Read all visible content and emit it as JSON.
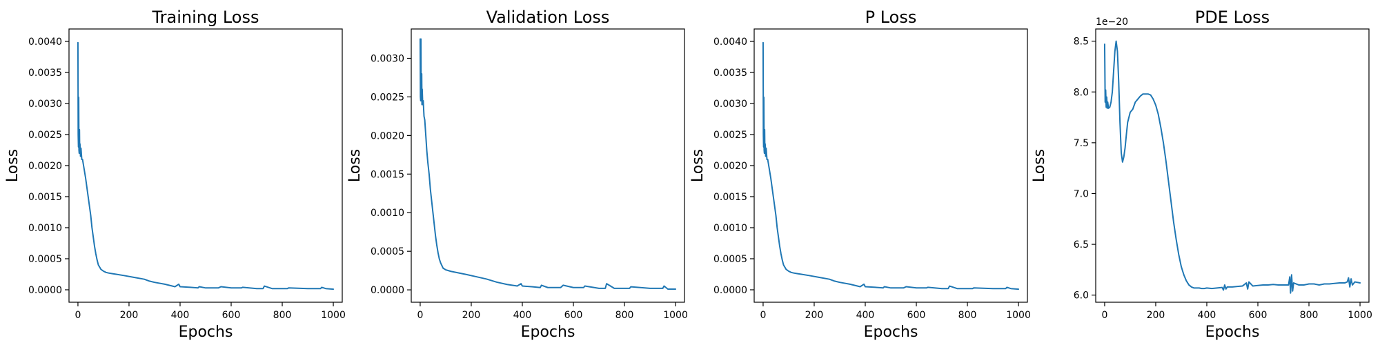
{
  "chart_data": [
    {
      "type": "line",
      "title": "Training Loss",
      "xlabel": "Epochs",
      "ylabel": "Loss",
      "xlim": [
        -35,
        1035
      ],
      "ylim": [
        -0.0002,
        0.0042
      ],
      "xticks": [
        0,
        200,
        400,
        600,
        800,
        1000
      ],
      "xticklabels": [
        "0",
        "200",
        "400",
        "600",
        "800",
        "1000"
      ],
      "yticks": [
        0.0,
        0.0005,
        0.001,
        0.0015,
        0.002,
        0.0025,
        0.003,
        0.0035,
        0.004
      ],
      "yticklabels": [
        "0.0000",
        "0.0005",
        "0.0010",
        "0.0015",
        "0.0020",
        "0.0025",
        "0.0030",
        "0.0035",
        "0.0040"
      ],
      "offset_text": "",
      "color": "#1f77b4",
      "x": [
        0,
        1,
        2,
        3,
        4,
        5,
        6,
        7,
        8,
        10,
        12,
        15,
        18,
        22,
        26,
        30,
        35,
        40,
        45,
        50,
        55,
        60,
        65,
        70,
        75,
        80,
        90,
        100,
        110,
        120,
        135,
        150,
        180,
        220,
        260,
        280,
        300,
        340,
        380,
        395,
        400,
        440,
        470,
        475,
        500,
        550,
        560,
        600,
        640,
        645,
        700,
        725,
        730,
        760,
        820,
        825,
        900,
        950,
        955,
        970,
        1000
      ],
      "y": [
        0.00398,
        0.0025,
        0.0023,
        0.0031,
        0.00225,
        0.0022,
        0.00258,
        0.0022,
        0.00235,
        0.00215,
        0.00228,
        0.0021,
        0.0021,
        0.002,
        0.0019,
        0.0018,
        0.00165,
        0.0015,
        0.00135,
        0.0012,
        0.001,
        0.00085,
        0.0007,
        0.00058,
        0.00048,
        0.0004,
        0.00033,
        0.0003,
        0.00028,
        0.00027,
        0.00026,
        0.00025,
        0.00023,
        0.0002,
        0.00017,
        0.00014,
        0.00012,
        9e-05,
        5e-05,
        9e-05,
        5e-05,
        4e-05,
        3e-05,
        5e-05,
        3e-05,
        3e-05,
        5e-05,
        3e-05,
        3e-05,
        4e-05,
        2e-05,
        2e-05,
        6e-05,
        2e-05,
        2e-05,
        3e-05,
        2e-05,
        2e-05,
        4e-05,
        2e-05,
        1e-05
      ]
    },
    {
      "type": "line",
      "title": "Validation Loss",
      "xlabel": "Epochs",
      "ylabel": "Loss",
      "xlim": [
        -35,
        1035
      ],
      "ylim": [
        -0.00016,
        0.00338
      ],
      "xticks": [
        0,
        200,
        400,
        600,
        800,
        1000
      ],
      "xticklabels": [
        "0",
        "200",
        "400",
        "600",
        "800",
        "1000"
      ],
      "yticks": [
        0.0,
        0.0005,
        0.001,
        0.0015,
        0.002,
        0.0025,
        0.003
      ],
      "yticklabels": [
        "0.0000",
        "0.0005",
        "0.0010",
        "0.0015",
        "0.0020",
        "0.0025",
        "0.0030"
      ],
      "offset_text": "",
      "color": "#1f77b4",
      "x": [
        0,
        1,
        2,
        3,
        4,
        5,
        6,
        7,
        8,
        10,
        12,
        15,
        18,
        22,
        26,
        30,
        35,
        40,
        45,
        50,
        55,
        60,
        65,
        70,
        75,
        80,
        90,
        100,
        110,
        120,
        135,
        150,
        180,
        220,
        260,
        280,
        300,
        340,
        380,
        395,
        400,
        440,
        470,
        475,
        500,
        550,
        560,
        600,
        640,
        645,
        700,
        725,
        730,
        760,
        820,
        825,
        900,
        950,
        955,
        970,
        1000
      ],
      "y": [
        0.00325,
        0.0025,
        0.00245,
        0.00325,
        0.00245,
        0.0025,
        0.0028,
        0.0024,
        0.0026,
        0.0024,
        0.00245,
        0.00225,
        0.0022,
        0.002,
        0.0018,
        0.00165,
        0.0015,
        0.0013,
        0.00115,
        0.001,
        0.00085,
        0.0007,
        0.00058,
        0.00048,
        0.0004,
        0.00035,
        0.00028,
        0.00026,
        0.00025,
        0.00024,
        0.00023,
        0.00022,
        0.0002,
        0.00017,
        0.00014,
        0.00012,
        0.0001,
        7e-05,
        5e-05,
        8e-05,
        5e-05,
        4e-05,
        3e-05,
        6e-05,
        3e-05,
        3e-05,
        6e-05,
        3e-05,
        3e-05,
        5e-05,
        2e-05,
        2e-05,
        8e-05,
        2e-05,
        2e-05,
        4e-05,
        2e-05,
        2e-05,
        5e-05,
        1e-05,
        1e-05
      ]
    },
    {
      "type": "line",
      "title": "P Loss",
      "xlabel": "Epochs",
      "ylabel": "Loss",
      "xlim": [
        -35,
        1035
      ],
      "ylim": [
        -0.0002,
        0.0042
      ],
      "xticks": [
        0,
        200,
        400,
        600,
        800,
        1000
      ],
      "xticklabels": [
        "0",
        "200",
        "400",
        "600",
        "800",
        "1000"
      ],
      "yticks": [
        0.0,
        0.0005,
        0.001,
        0.0015,
        0.002,
        0.0025,
        0.003,
        0.0035,
        0.004
      ],
      "yticklabels": [
        "0.0000",
        "0.0005",
        "0.0010",
        "0.0015",
        "0.0020",
        "0.0025",
        "0.0030",
        "0.0035",
        "0.0040"
      ],
      "offset_text": "",
      "color": "#1f77b4",
      "x": [
        0,
        1,
        2,
        3,
        4,
        5,
        6,
        7,
        8,
        10,
        12,
        15,
        18,
        22,
        26,
        30,
        35,
        40,
        45,
        50,
        55,
        60,
        65,
        70,
        75,
        80,
        90,
        100,
        110,
        120,
        135,
        150,
        180,
        220,
        260,
        280,
        300,
        340,
        380,
        395,
        400,
        440,
        470,
        475,
        500,
        550,
        560,
        600,
        640,
        645,
        700,
        725,
        730,
        760,
        820,
        825,
        900,
        950,
        955,
        970,
        1000
      ],
      "y": [
        0.00398,
        0.0025,
        0.0023,
        0.0031,
        0.00225,
        0.0022,
        0.00258,
        0.0022,
        0.00235,
        0.00215,
        0.00228,
        0.0021,
        0.0021,
        0.002,
        0.0019,
        0.0018,
        0.00165,
        0.0015,
        0.00135,
        0.0012,
        0.001,
        0.00085,
        0.0007,
        0.00058,
        0.00048,
        0.0004,
        0.00033,
        0.0003,
        0.00028,
        0.00027,
        0.00026,
        0.00025,
        0.00023,
        0.0002,
        0.00017,
        0.00014,
        0.00012,
        9e-05,
        5e-05,
        9e-05,
        5e-05,
        4e-05,
        3e-05,
        5e-05,
        3e-05,
        3e-05,
        5e-05,
        3e-05,
        3e-05,
        4e-05,
        2e-05,
        2e-05,
        6e-05,
        2e-05,
        2e-05,
        3e-05,
        2e-05,
        2e-05,
        4e-05,
        2e-05,
        1e-05
      ]
    },
    {
      "type": "line",
      "title": "PDE Loss",
      "xlabel": "Epochs",
      "ylabel": "Loss",
      "xlim": [
        -35,
        1035
      ],
      "ylim": [
        5.93,
        8.62
      ],
      "xticks": [
        0,
        200,
        400,
        600,
        800,
        1000
      ],
      "xticklabels": [
        "0",
        "200",
        "400",
        "600",
        "800",
        "1000"
      ],
      "yticks": [
        6.0,
        6.5,
        7.0,
        7.5,
        8.0,
        8.5
      ],
      "yticklabels": [
        "6.0",
        "6.5",
        "7.0",
        "7.5",
        "8.0",
        "8.5"
      ],
      "offset_text": "1e−20",
      "color": "#1f77b4",
      "x": [
        0,
        2,
        4,
        6,
        8,
        10,
        12,
        15,
        20,
        25,
        30,
        35,
        40,
        45,
        50,
        55,
        60,
        65,
        70,
        75,
        80,
        85,
        90,
        100,
        110,
        120,
        130,
        140,
        150,
        160,
        170,
        180,
        190,
        200,
        210,
        220,
        230,
        240,
        250,
        260,
        270,
        280,
        290,
        300,
        310,
        320,
        330,
        340,
        350,
        360,
        370,
        380,
        390,
        400,
        420,
        440,
        460,
        465,
        470,
        475,
        480,
        500,
        520,
        540,
        555,
        560,
        565,
        580,
        600,
        620,
        640,
        660,
        680,
        700,
        720,
        725,
        728,
        732,
        736,
        740,
        760,
        780,
        800,
        820,
        840,
        860,
        880,
        900,
        920,
        940,
        950,
        955,
        960,
        965,
        970,
        980,
        1000
      ],
      "y": [
        8.47,
        7.9,
        8.02,
        7.85,
        7.95,
        7.84,
        7.9,
        7.84,
        7.85,
        7.9,
        8.0,
        8.2,
        8.4,
        8.5,
        8.4,
        8.1,
        7.7,
        7.4,
        7.31,
        7.36,
        7.45,
        7.58,
        7.7,
        7.8,
        7.83,
        7.9,
        7.93,
        7.96,
        7.98,
        7.98,
        7.98,
        7.97,
        7.93,
        7.87,
        7.78,
        7.65,
        7.5,
        7.32,
        7.12,
        6.92,
        6.72,
        6.55,
        6.4,
        6.28,
        6.2,
        6.14,
        6.1,
        6.08,
        6.07,
        6.07,
        6.07,
        6.065,
        6.065,
        6.07,
        6.065,
        6.07,
        6.075,
        6.05,
        6.1,
        6.06,
        6.08,
        6.08,
        6.085,
        6.09,
        6.12,
        6.06,
        6.13,
        6.09,
        6.095,
        6.1,
        6.1,
        6.105,
        6.1,
        6.1,
        6.1,
        6.18,
        6.02,
        6.2,
        6.04,
        6.12,
        6.1,
        6.1,
        6.11,
        6.11,
        6.1,
        6.11,
        6.11,
        6.115,
        6.12,
        6.12,
        6.13,
        6.17,
        6.08,
        6.16,
        6.1,
        6.13,
        6.12
      ]
    }
  ]
}
